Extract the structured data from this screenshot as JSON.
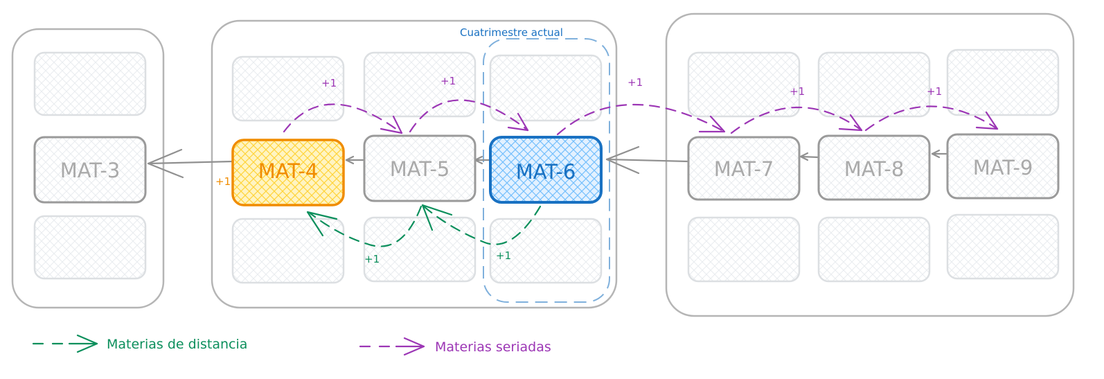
{
  "colors": {
    "group_border": "#b5b5b5",
    "cell_border": "#dcdfe2",
    "subject_border": "#9a9a9a",
    "subject_text": "#aaaaaa",
    "orange": "#f08c00",
    "orange_fill": "#ffe58a",
    "blue": "#1971c2",
    "blue_fill": "#a5d8ff",
    "purple": "#9c36b5",
    "green": "#0c8f5c",
    "dash_blue": "#7fb0dc",
    "arrow_gray": "#909090"
  },
  "current_term": {
    "label": "Cuatrimestre actual"
  },
  "subjects": {
    "mat3": "MAT-3",
    "mat4": "MAT-4",
    "mat5": "MAT-5",
    "mat6": "MAT-6",
    "mat7": "MAT-7",
    "mat8": "MAT-8",
    "mat9": "MAT-9"
  },
  "increments": {
    "mat4_side": "+1",
    "serial_4_5": "+1",
    "serial_5_6": "+1",
    "serial_6_7": "+1",
    "serial_7_8": "+1",
    "serial_8_9": "+1",
    "distance_5_4": "+1",
    "distance_6_5": "+1"
  },
  "legend": {
    "distance": "Materias de distancia",
    "serial": "Materias seriadas"
  }
}
